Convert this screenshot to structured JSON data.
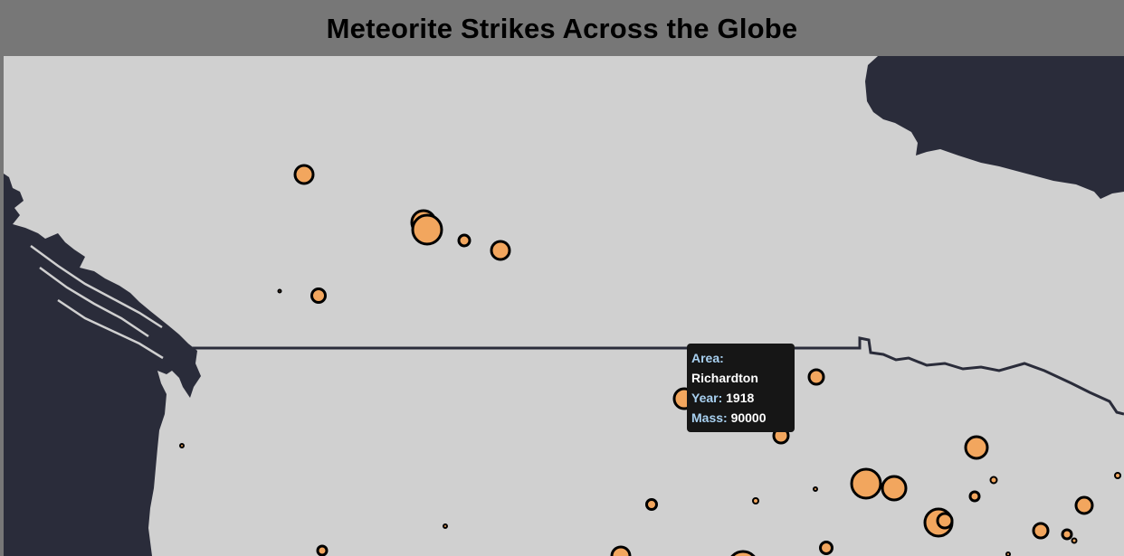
{
  "header": {
    "title": "Meteorite Strikes Across the Globe"
  },
  "tooltip": {
    "area_label": "Area:",
    "area_value": "Richardton",
    "year_label": "Year:",
    "year_value": "1918",
    "mass_label": "Mass:",
    "mass_value": "90000"
  },
  "colors": {
    "background": "#777777",
    "ocean": "#d0d0d0",
    "land": "#2a2c3a",
    "meteor_fill": "#f2a65e",
    "meteor_stroke": "#000000",
    "tooltip_bg": "#161616",
    "tooltip_key": "#a8d0f0"
  }
}
